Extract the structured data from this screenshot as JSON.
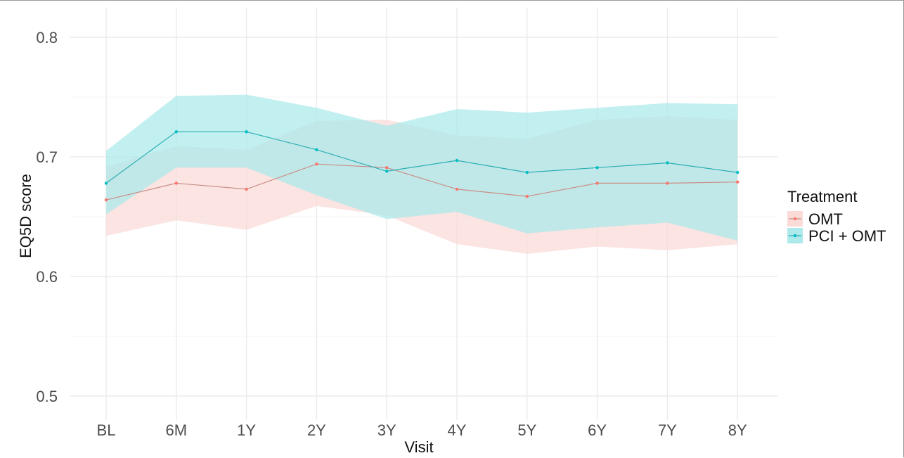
{
  "chart_data": {
    "type": "line",
    "title": "",
    "xlabel": "Visit",
    "ylabel": "EQ5D score",
    "categories": [
      "BL",
      "6M",
      "1Y",
      "2Y",
      "3Y",
      "4Y",
      "5Y",
      "6Y",
      "7Y",
      "8Y"
    ],
    "ylim": [
      0.5,
      0.8
    ],
    "yticks": [
      0.5,
      0.6,
      0.7,
      0.8
    ],
    "grid": true,
    "legend": {
      "title": "Treatment",
      "position": "right"
    },
    "series": [
      {
        "name": "OMT",
        "color": "#F8766D",
        "band_color": "#FADBD8",
        "values": [
          0.664,
          0.678,
          0.673,
          0.694,
          0.691,
          0.673,
          0.667,
          0.678,
          0.678,
          0.679
        ],
        "lower": [
          0.634,
          0.647,
          0.639,
          0.659,
          0.651,
          0.627,
          0.619,
          0.625,
          0.622,
          0.627
        ],
        "upper": [
          0.692,
          0.709,
          0.706,
          0.73,
          0.731,
          0.718,
          0.715,
          0.731,
          0.734,
          0.731
        ]
      },
      {
        "name": "PCI + OMT",
        "color": "#00BFC4",
        "band_color": "#AEE9EB",
        "values": [
          0.678,
          0.721,
          0.721,
          0.706,
          0.688,
          0.697,
          0.687,
          0.691,
          0.695,
          0.687
        ],
        "lower": [
          0.652,
          0.691,
          0.691,
          0.668,
          0.648,
          0.654,
          0.636,
          0.641,
          0.645,
          0.63
        ],
        "upper": [
          0.705,
          0.751,
          0.752,
          0.741,
          0.726,
          0.74,
          0.737,
          0.741,
          0.745,
          0.744
        ]
      }
    ]
  }
}
